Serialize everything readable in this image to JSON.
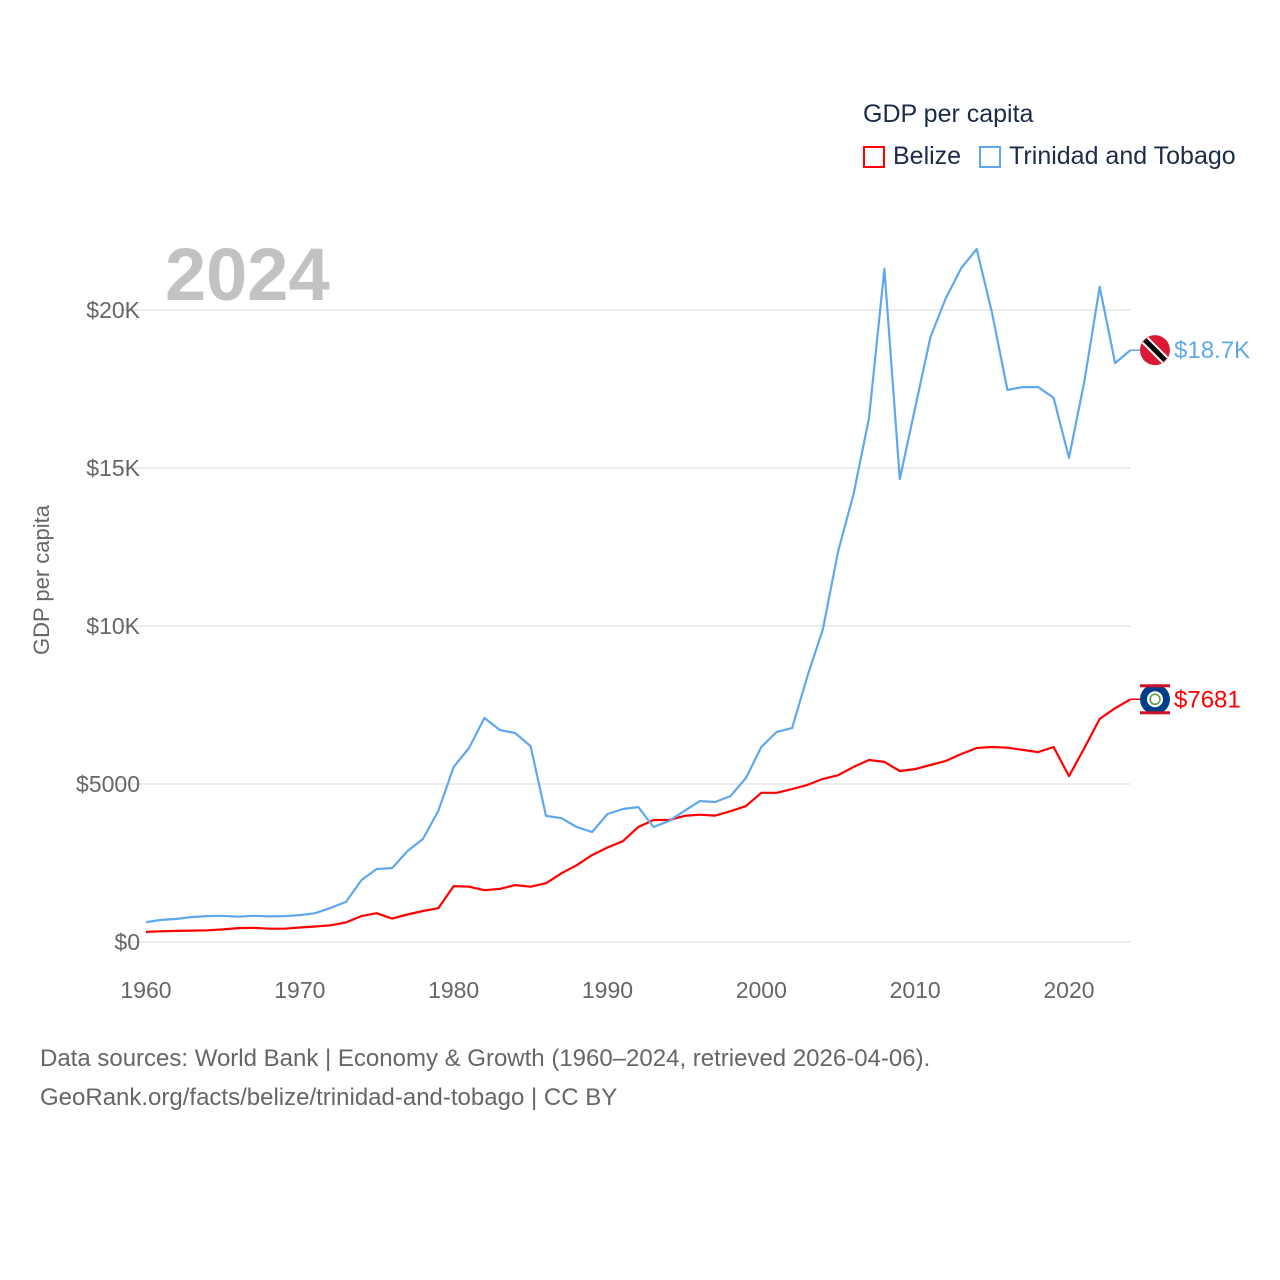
{
  "chart_data": {
    "type": "line",
    "title": "2024",
    "xlabel": "",
    "ylabel": "GDP per capita",
    "legend_title": "GDP per capita",
    "legend_position": "top-right",
    "xlim": [
      1960,
      2024
    ],
    "ylim": [
      0,
      22500
    ],
    "grid": true,
    "x_ticks": [
      1960,
      1970,
      1980,
      1990,
      2000,
      2010,
      2020
    ],
    "x_tick_labels": [
      "1960",
      "1970",
      "1980",
      "1990",
      "2000",
      "2010",
      "2020"
    ],
    "y_ticks": [
      0,
      5000,
      10000,
      15000,
      20000
    ],
    "y_tick_labels": [
      "$0",
      "$5000",
      "$10K",
      "$15K",
      "$20K"
    ],
    "x_start": 1960,
    "series": [
      {
        "name": "Belize",
        "color": "#ff0000",
        "end_label": "$7681",
        "flag": "belize-flag",
        "values": [
          320,
          340,
          350,
          360,
          370,
          400,
          440,
          450,
          420,
          420,
          460,
          490,
          530,
          620,
          820,
          910,
          740,
          870,
          980,
          1070,
          1770,
          1750,
          1640,
          1680,
          1800,
          1750,
          1860,
          2170,
          2430,
          2750,
          2990,
          3190,
          3640,
          3860,
          3860,
          3990,
          4030,
          4000,
          4140,
          4300,
          4720,
          4720,
          4840,
          4970,
          5160,
          5280,
          5540,
          5760,
          5700,
          5410,
          5470,
          5600,
          5730,
          5950,
          6140,
          6170,
          6150,
          6080,
          6010,
          6170,
          5250,
          6140,
          7060,
          7400,
          7681
        ]
      },
      {
        "name": "Trinidad and Tobago",
        "color": "#5fa8ee",
        "end_label": "$18.7K",
        "flag": "trinidad-and-tobago-flag",
        "values": [
          630,
          700,
          730,
          790,
          820,
          830,
          800,
          830,
          810,
          820,
          850,
          910,
          1080,
          1270,
          1960,
          2310,
          2340,
          2880,
          3260,
          4150,
          5540,
          6140,
          7090,
          6710,
          6610,
          6200,
          3990,
          3920,
          3640,
          3480,
          4050,
          4210,
          4270,
          3640,
          3830,
          4150,
          4460,
          4430,
          4620,
          5190,
          6170,
          6650,
          6770,
          8420,
          9900,
          12370,
          14180,
          16580,
          21300,
          14650,
          16900,
          19150,
          20380,
          21330,
          21930,
          19900,
          17470,
          17560,
          17560,
          17220,
          15320,
          17750,
          20730,
          18320,
          18730
        ]
      }
    ]
  },
  "footer": {
    "line1": "Data sources: World Bank | Economy & Growth (1960–2024, retrieved 2026-04-06).",
    "line2": "GeoRank.org/facts/belize/trinidad-and-tobago | CC BY"
  }
}
